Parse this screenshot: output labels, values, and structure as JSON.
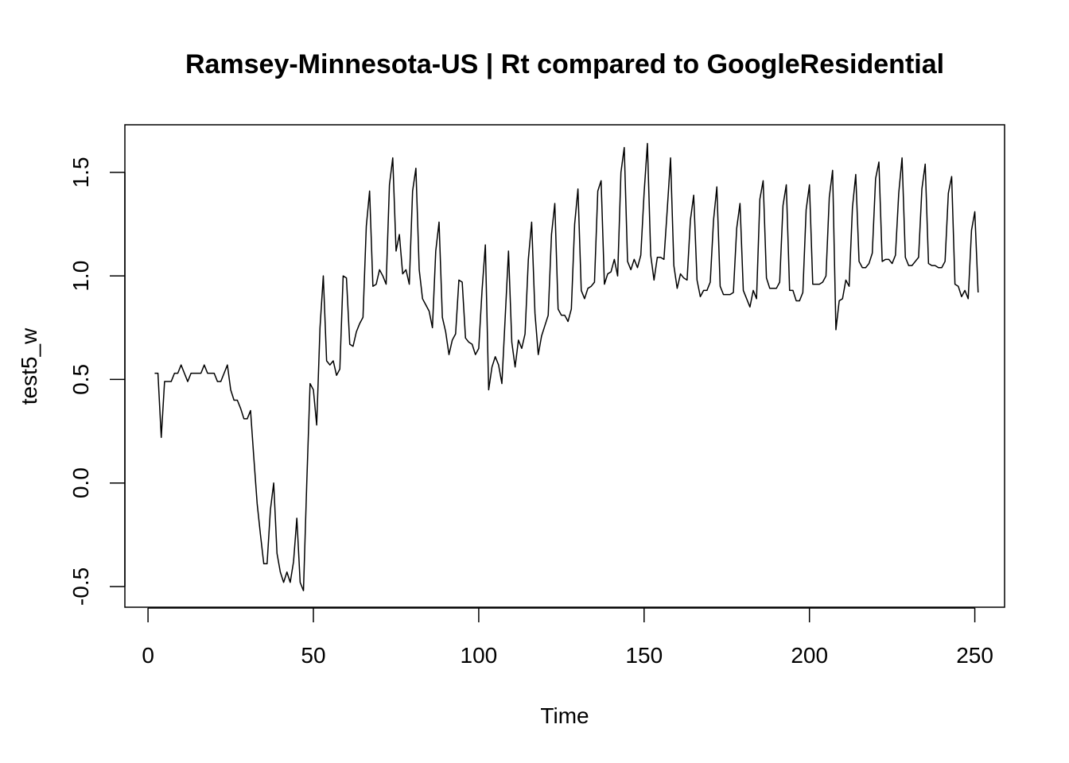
{
  "chart_data": {
    "type": "line",
    "title": "Ramsey-Minnesota-US | Rt compared to GoogleResidential",
    "xlabel": "Time",
    "ylabel": "test5_w",
    "xlim": [
      -7,
      259
    ],
    "ylim": [
      -0.6,
      1.73
    ],
    "xticks": [
      0,
      50,
      100,
      150,
      200,
      250
    ],
    "xtick_labels": [
      "0",
      "50",
      "100",
      "150",
      "200",
      "250"
    ],
    "yticks": [
      -0.5,
      0.0,
      0.5,
      1.0,
      1.5
    ],
    "ytick_labels": [
      "-0.5",
      "0.0",
      "0.5",
      "1.0",
      "1.5"
    ],
    "grid": false,
    "legend": "none",
    "line_color": "#000000",
    "series": [
      {
        "x_start": 2,
        "x_step": 1,
        "values": [
          0.53,
          0.53,
          0.22,
          0.49,
          0.49,
          0.49,
          0.53,
          0.53,
          0.57,
          0.53,
          0.49,
          0.53,
          0.53,
          0.53,
          0.53,
          0.57,
          0.53,
          0.53,
          0.53,
          0.49,
          0.49,
          0.53,
          0.57,
          0.45,
          0.4,
          0.4,
          0.36,
          0.31,
          0.31,
          0.35,
          0.12,
          -0.1,
          -0.25,
          -0.39,
          -0.39,
          -0.13,
          0.0,
          -0.34,
          -0.43,
          -0.48,
          -0.43,
          -0.48,
          -0.38,
          -0.17,
          -0.48,
          -0.52,
          0.0,
          0.48,
          0.45,
          0.28,
          0.75,
          1.0,
          0.59,
          0.57,
          0.59,
          0.52,
          0.55,
          1.0,
          0.99,
          0.67,
          0.66,
          0.73,
          0.77,
          0.8,
          1.24,
          1.41,
          0.95,
          0.96,
          1.03,
          1.0,
          0.96,
          1.44,
          1.57,
          1.12,
          1.2,
          1.01,
          1.03,
          0.96,
          1.41,
          1.52,
          1.03,
          0.89,
          0.86,
          0.83,
          0.75,
          1.12,
          1.26,
          0.8,
          0.73,
          0.62,
          0.69,
          0.72,
          0.98,
          0.97,
          0.7,
          0.68,
          0.67,
          0.62,
          0.65,
          0.93,
          1.15,
          0.45,
          0.56,
          0.61,
          0.57,
          0.48,
          0.8,
          1.12,
          0.68,
          0.56,
          0.69,
          0.65,
          0.72,
          1.08,
          1.26,
          0.82,
          0.62,
          0.71,
          0.76,
          0.81,
          1.2,
          1.35,
          0.84,
          0.81,
          0.81,
          0.78,
          0.84,
          1.25,
          1.42,
          0.93,
          0.89,
          0.94,
          0.95,
          0.97,
          1.41,
          1.46,
          0.96,
          1.01,
          1.02,
          1.08,
          1.0,
          1.5,
          1.62,
          1.07,
          1.03,
          1.08,
          1.04,
          1.1,
          1.4,
          1.64,
          1.1,
          0.98,
          1.09,
          1.09,
          1.08,
          1.32,
          1.57,
          1.05,
          0.94,
          1.01,
          0.99,
          0.98,
          1.27,
          1.39,
          0.98,
          0.9,
          0.93,
          0.93,
          0.97,
          1.27,
          1.43,
          0.95,
          0.91,
          0.91,
          0.91,
          0.92,
          1.23,
          1.35,
          0.93,
          0.89,
          0.85,
          0.93,
          0.89,
          1.37,
          1.46,
          0.99,
          0.94,
          0.94,
          0.94,
          0.97,
          1.34,
          1.44,
          0.93,
          0.93,
          0.88,
          0.88,
          0.92,
          1.32,
          1.44,
          0.96,
          0.96,
          0.96,
          0.97,
          1.0,
          1.38,
          1.51,
          0.74,
          0.88,
          0.89,
          0.98,
          0.95,
          1.33,
          1.49,
          1.07,
          1.04,
          1.04,
          1.06,
          1.11,
          1.47,
          1.55,
          1.07,
          1.08,
          1.08,
          1.06,
          1.1,
          1.4,
          1.57,
          1.09,
          1.05,
          1.05,
          1.07,
          1.09,
          1.42,
          1.54,
          1.06,
          1.05,
          1.05,
          1.04,
          1.04,
          1.07,
          1.4,
          1.48,
          0.96,
          0.95,
          0.9,
          0.93,
          0.89,
          1.22,
          1.31,
          0.92
        ]
      }
    ]
  }
}
